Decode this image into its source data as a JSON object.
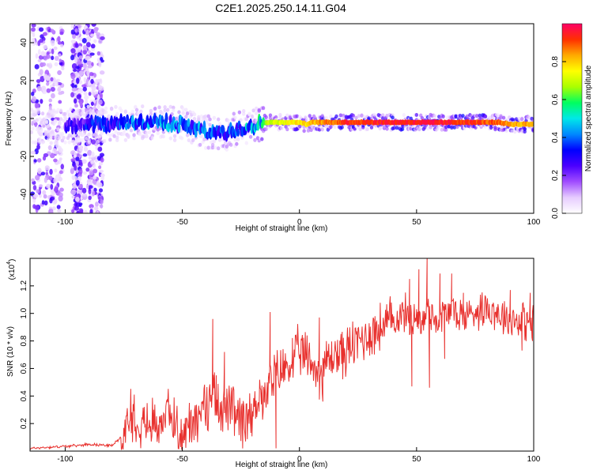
{
  "chart_data": [
    {
      "type": "heatmap",
      "title": "C2E1.2025.250.14.11.G04",
      "xlabel": "Height of straight line (km)",
      "ylabel": "Frequency (Hz)",
      "xlim": [
        -115,
        100
      ],
      "ylim": [
        -50,
        50
      ],
      "x_ticks": [
        "-100",
        "-50",
        "0",
        "50",
        "100"
      ],
      "y_ticks": [
        "-40",
        "-20",
        "0",
        "20",
        "40"
      ],
      "colorbar": {
        "label": "Normalized spectral amplitude",
        "range": [
          0,
          1
        ],
        "ticks": [
          "0.0",
          "0.2",
          "0.4",
          "0.6",
          "0.8"
        ],
        "colors": [
          "#ffffff",
          "#e6ccff",
          "#a04cff",
          "#4b00ff",
          "#0000ff",
          "#0088ff",
          "#00e8e8",
          "#00ff60",
          "#aaff00",
          "#ffff00",
          "#ffaa00",
          "#ff3000",
          "#ff0066"
        ]
      },
      "ridge": [
        {
          "x": -95,
          "y": -4,
          "level": 0.3
        },
        {
          "x": -80,
          "y": -3,
          "level": 0.35
        },
        {
          "x": -70,
          "y": -2,
          "level": 0.4
        },
        {
          "x": -60,
          "y": -2,
          "level": 0.45
        },
        {
          "x": -50,
          "y": -3,
          "level": 0.4
        },
        {
          "x": -40,
          "y": -7,
          "level": 0.4
        },
        {
          "x": -32,
          "y": -8,
          "level": 0.4
        },
        {
          "x": -25,
          "y": -5,
          "level": 0.45
        },
        {
          "x": -18,
          "y": -3,
          "level": 0.5
        },
        {
          "x": -14,
          "y": -2,
          "level": 0.7
        },
        {
          "x": 0,
          "y": -2,
          "level": 0.8
        },
        {
          "x": 3,
          "y": -3,
          "level": 0.8
        },
        {
          "x": 6,
          "y": -2,
          "level": 0.85
        },
        {
          "x": 20,
          "y": -2,
          "level": 0.95
        },
        {
          "x": 40,
          "y": -2,
          "level": 0.98
        },
        {
          "x": 60,
          "y": -2,
          "level": 0.97
        },
        {
          "x": 75,
          "y": -2,
          "level": 0.95
        },
        {
          "x": 85,
          "y": -2,
          "level": 0.9
        },
        {
          "x": 90,
          "y": -3,
          "level": 0.85
        },
        {
          "x": 100,
          "y": -3,
          "level": 0.85
        }
      ]
    },
    {
      "type": "line",
      "xlabel": "Height of straight line (km)",
      "ylabel": "SNR (10 * v/v)",
      "y_multiplier": "(x10",
      "y_multiplier_exp": "4",
      "y_multiplier_close": ")",
      "xlim": [
        -115,
        100
      ],
      "ylim": [
        0,
        1.4
      ],
      "x_ticks": [
        "-100",
        "-50",
        "0",
        "50",
        "100"
      ],
      "y_ticks": [
        "0.2",
        "0.4",
        "0.6",
        "0.8",
        "1.0",
        "1.2"
      ],
      "color": "#e8312e",
      "x": [
        -115,
        -105,
        -95,
        -90,
        -80,
        -75,
        -72,
        -70,
        -65,
        -60,
        -55,
        -50,
        -45,
        -40,
        -37,
        -35,
        -30,
        -25,
        -20,
        -17,
        -15,
        -12,
        -10,
        -5,
        0,
        5,
        8,
        10,
        15,
        20,
        25,
        30,
        35,
        40,
        45,
        48,
        50,
        52,
        55,
        58,
        62,
        65,
        70,
        75,
        80,
        85,
        90,
        95,
        100
      ],
      "y": [
        0.02,
        0.03,
        0.04,
        0.05,
        0.04,
        0.12,
        0.3,
        0.25,
        0.2,
        0.22,
        0.28,
        0.1,
        0.25,
        0.3,
        0.45,
        0.35,
        0.3,
        0.2,
        0.25,
        0.45,
        0.35,
        0.5,
        0.55,
        0.62,
        0.72,
        0.65,
        0.55,
        0.62,
        0.7,
        0.72,
        0.8,
        0.85,
        0.9,
        0.95,
        1.0,
        0.95,
        1.0,
        0.9,
        1.05,
        0.95,
        1.0,
        1.02,
        0.98,
        1.02,
        1.05,
        1.0,
        0.96,
        0.95,
        0.92
      ],
      "spikes": [
        {
          "x": -70.5,
          "y": 0.41
        },
        {
          "x": -50,
          "y": 0.02
        },
        {
          "x": -47,
          "y": 0.35
        },
        {
          "x": -37,
          "y": 0.96
        },
        {
          "x": -35.5,
          "y": 0.55
        },
        {
          "x": -32,
          "y": 0.72
        },
        {
          "x": -23,
          "y": 0.07
        },
        {
          "x": -12.5,
          "y": 1.01
        },
        {
          "x": -10,
          "y": 0.02
        },
        {
          "x": -3,
          "y": 0.74
        },
        {
          "x": 8.5,
          "y": 0.97
        },
        {
          "x": 10,
          "y": 0.36
        },
        {
          "x": 47,
          "y": 1.25
        },
        {
          "x": 48,
          "y": 0.47
        },
        {
          "x": 51,
          "y": 1.32
        },
        {
          "x": 54.5,
          "y": 1.41
        },
        {
          "x": 55.5,
          "y": 0.46
        },
        {
          "x": 60,
          "y": 1.29
        },
        {
          "x": 62,
          "y": 0.67
        },
        {
          "x": 65,
          "y": 1.29
        },
        {
          "x": 70,
          "y": 1.15
        },
        {
          "x": 90,
          "y": 1.17
        },
        {
          "x": 95,
          "y": 0.73
        },
        {
          "x": 98.5,
          "y": 1.15
        },
        {
          "x": 99.5,
          "y": 0.8
        }
      ]
    }
  ]
}
